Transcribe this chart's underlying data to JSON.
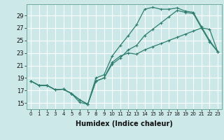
{
  "title": "",
  "xlabel": "Humidex (Indice chaleur)",
  "bg_color": "#cce8e8",
  "line_color": "#2e7d6e",
  "grid_color": "#b8d8d8",
  "xlim": [
    -0.5,
    23.5
  ],
  "ylim": [
    14.0,
    30.8
  ],
  "xticks": [
    0,
    1,
    2,
    3,
    4,
    5,
    6,
    7,
    8,
    9,
    10,
    11,
    12,
    13,
    14,
    15,
    16,
    17,
    18,
    19,
    20,
    21,
    22,
    23
  ],
  "yticks": [
    15,
    17,
    19,
    21,
    23,
    25,
    27,
    29
  ],
  "line1": {
    "x": [
      0,
      1,
      2,
      3,
      4,
      5,
      6,
      7,
      8,
      9,
      10,
      11,
      12,
      13,
      14,
      15,
      16,
      17,
      18,
      19,
      20,
      21,
      22,
      23
    ],
    "y": [
      18.5,
      17.8,
      17.8,
      17.1,
      17.2,
      16.5,
      15.1,
      14.8,
      19.0,
      19.5,
      22.5,
      24.2,
      25.8,
      27.5,
      30.0,
      30.3,
      30.0,
      30.0,
      30.2,
      29.7,
      29.5,
      27.2,
      25.0,
      23.2
    ]
  },
  "line2": {
    "x": [
      0,
      1,
      2,
      3,
      4,
      5,
      6,
      7,
      8,
      9,
      10,
      11,
      12,
      13,
      14,
      15,
      16,
      17,
      18,
      19,
      20,
      21,
      22,
      23
    ],
    "y": [
      18.5,
      17.8,
      17.8,
      17.1,
      17.2,
      16.5,
      15.5,
      14.8,
      18.5,
      19.0,
      21.5,
      22.5,
      23.0,
      22.8,
      23.5,
      24.0,
      24.5,
      25.0,
      25.5,
      26.0,
      26.5,
      27.0,
      26.8,
      23.2
    ]
  },
  "line3": {
    "x": [
      0,
      1,
      2,
      3,
      4,
      5,
      6,
      7,
      8,
      9,
      10,
      11,
      12,
      13,
      14,
      15,
      16,
      17,
      18,
      19,
      20,
      21,
      22,
      23
    ],
    "y": [
      18.5,
      17.8,
      17.8,
      17.1,
      17.2,
      16.5,
      15.5,
      14.8,
      18.5,
      19.0,
      21.2,
      22.2,
      23.5,
      24.2,
      25.8,
      26.8,
      27.8,
      28.8,
      29.8,
      29.5,
      29.3,
      27.0,
      24.8,
      23.2
    ]
  }
}
